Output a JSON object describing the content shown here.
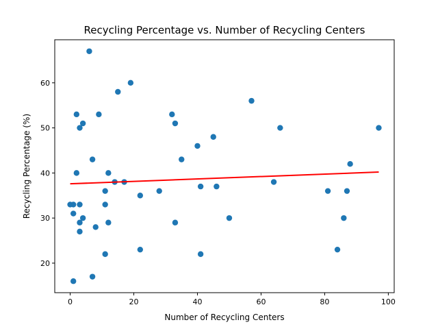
{
  "chart_data": {
    "type": "scatter",
    "title": "Recycling Percentage vs. Number of Recycling Centers",
    "xlabel": "Number of Recycling Centers",
    "ylabel": "Recycling Percentage (%)",
    "xlim": [
      -4.85,
      101.85
    ],
    "ylim": [
      13.45,
      69.55
    ],
    "xticks": [
      0,
      20,
      40,
      60,
      80,
      100
    ],
    "yticks": [
      20,
      30,
      40,
      50,
      60
    ],
    "grid": false,
    "series": [
      {
        "marker_color": "#1f77b4",
        "points": [
          [
            6,
            67
          ],
          [
            19,
            60
          ],
          [
            15,
            58
          ],
          [
            57,
            56
          ],
          [
            2,
            53
          ],
          [
            9,
            53
          ],
          [
            32,
            53
          ],
          [
            4,
            51
          ],
          [
            33,
            51
          ],
          [
            3,
            50
          ],
          [
            66,
            50
          ],
          [
            97,
            50
          ],
          [
            45,
            48
          ],
          [
            40,
            46
          ],
          [
            7,
            43
          ],
          [
            35,
            43
          ],
          [
            88,
            42
          ],
          [
            2,
            40
          ],
          [
            12,
            40
          ],
          [
            14,
            38
          ],
          [
            17,
            38
          ],
          [
            64,
            38
          ],
          [
            41,
            37
          ],
          [
            46,
            37
          ],
          [
            11,
            36
          ],
          [
            28,
            36
          ],
          [
            81,
            36
          ],
          [
            87,
            36
          ],
          [
            22,
            35
          ],
          [
            0,
            33
          ],
          [
            1,
            33
          ],
          [
            3,
            33
          ],
          [
            11,
            33
          ],
          [
            1,
            31
          ],
          [
            4,
            30
          ],
          [
            50,
            30
          ],
          [
            86,
            30
          ],
          [
            3,
            29
          ],
          [
            12,
            29
          ],
          [
            33,
            29
          ],
          [
            8,
            28
          ],
          [
            3,
            27
          ],
          [
            22,
            23
          ],
          [
            84,
            23
          ],
          [
            11,
            22
          ],
          [
            41,
            22
          ],
          [
            7,
            17
          ],
          [
            1,
            16
          ]
        ]
      }
    ],
    "trendline": {
      "color": "#ff0000",
      "x": [
        0,
        97
      ],
      "y": [
        37.6,
        40.2
      ]
    }
  }
}
